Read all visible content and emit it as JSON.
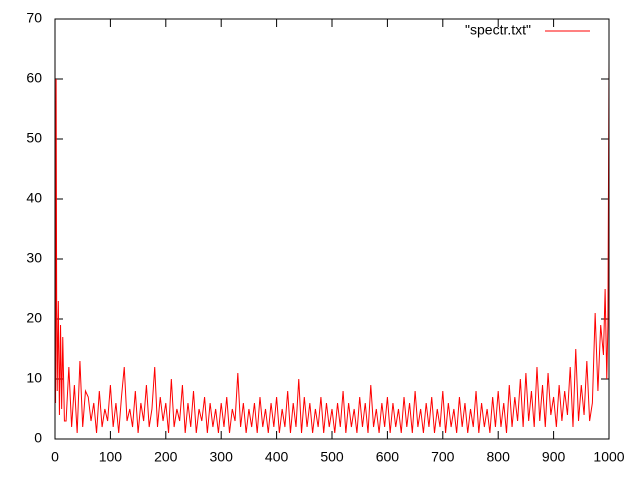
{
  "chart_data": {
    "type": "line",
    "x": [
      0,
      1,
      2,
      3,
      4,
      6,
      8,
      10,
      12,
      14,
      17,
      20,
      25,
      30,
      35,
      40,
      45,
      50,
      55,
      60,
      65,
      70,
      75,
      80,
      85,
      90,
      95,
      100,
      105,
      110,
      115,
      120,
      125,
      130,
      135,
      140,
      145,
      150,
      155,
      160,
      165,
      170,
      175,
      180,
      185,
      190,
      195,
      200,
      205,
      210,
      215,
      220,
      225,
      230,
      235,
      240,
      245,
      250,
      255,
      260,
      265,
      270,
      275,
      280,
      285,
      290,
      295,
      300,
      305,
      310,
      315,
      320,
      325,
      330,
      335,
      340,
      345,
      350,
      355,
      360,
      365,
      370,
      375,
      380,
      385,
      390,
      395,
      400,
      405,
      410,
      415,
      420,
      425,
      430,
      435,
      440,
      445,
      450,
      455,
      460,
      465,
      470,
      475,
      480,
      485,
      490,
      495,
      500,
      505,
      510,
      515,
      520,
      525,
      530,
      535,
      540,
      545,
      550,
      555,
      560,
      565,
      570,
      575,
      580,
      585,
      590,
      595,
      600,
      605,
      610,
      615,
      620,
      625,
      630,
      635,
      640,
      645,
      650,
      655,
      660,
      665,
      670,
      675,
      680,
      685,
      690,
      695,
      700,
      705,
      710,
      715,
      720,
      725,
      730,
      735,
      740,
      745,
      750,
      755,
      760,
      765,
      770,
      775,
      780,
      785,
      790,
      795,
      800,
      805,
      810,
      815,
      820,
      825,
      830,
      835,
      840,
      845,
      850,
      855,
      860,
      865,
      870,
      875,
      880,
      885,
      890,
      895,
      900,
      905,
      910,
      915,
      920,
      925,
      930,
      935,
      940,
      945,
      950,
      955,
      960,
      965,
      970,
      975,
      980,
      985,
      990,
      993,
      996,
      998,
      1000
    ],
    "series": [
      {
        "name": "\"spectr.txt\"",
        "color": "#ff0000",
        "values": [
          63,
          6,
          60,
          22,
          8,
          23,
          4,
          19,
          5,
          17,
          3,
          3,
          12,
          2,
          9,
          1,
          13,
          2,
          8,
          7,
          3,
          6,
          1,
          8,
          2,
          5,
          3,
          9,
          2,
          6,
          1,
          7,
          12,
          3,
          5,
          2,
          8,
          1,
          6,
          3,
          9,
          2,
          5,
          12,
          2,
          7,
          3,
          6,
          1,
          10,
          2,
          5,
          3,
          9,
          1,
          6,
          2,
          8,
          1,
          5,
          3,
          7,
          1,
          6,
          2,
          5,
          1,
          6,
          2,
          7,
          1,
          5,
          3,
          11,
          2,
          6,
          1,
          5,
          2,
          6,
          1,
          7,
          2,
          5,
          1,
          6,
          2,
          7,
          1,
          5,
          2,
          8,
          1,
          6,
          2,
          10,
          1,
          7,
          2,
          6,
          1,
          5,
          2,
          7,
          1,
          6,
          2,
          5,
          1,
          6,
          2,
          8,
          1,
          6,
          2,
          5,
          1,
          7,
          2,
          6,
          1,
          9,
          2,
          5,
          1,
          6,
          2,
          7,
          1,
          6,
          2,
          5,
          1,
          7,
          2,
          6,
          1,
          8,
          2,
          5,
          1,
          6,
          2,
          7,
          1,
          5,
          2,
          8,
          1,
          6,
          2,
          5,
          1,
          7,
          2,
          6,
          1,
          5,
          2,
          8,
          1,
          6,
          2,
          5,
          1,
          7,
          2,
          8,
          2,
          6,
          1,
          9,
          2,
          7,
          3,
          10,
          2,
          11,
          3,
          8,
          2,
          12,
          3,
          9,
          2,
          11,
          4,
          7,
          2,
          9,
          3,
          8,
          4,
          12,
          2,
          15,
          3,
          9,
          4,
          13,
          3,
          6,
          21,
          8,
          19,
          14,
          25,
          10,
          19,
          63
        ]
      }
    ],
    "xlim": [
      0,
      1000
    ],
    "xticks": [
      0,
      100,
      200,
      300,
      400,
      500,
      600,
      700,
      800,
      900,
      1000
    ],
    "ylim": [
      0,
      70
    ],
    "yticks": [
      0,
      10,
      20,
      30,
      40,
      50,
      60,
      70
    ],
    "legend": "top-right"
  }
}
